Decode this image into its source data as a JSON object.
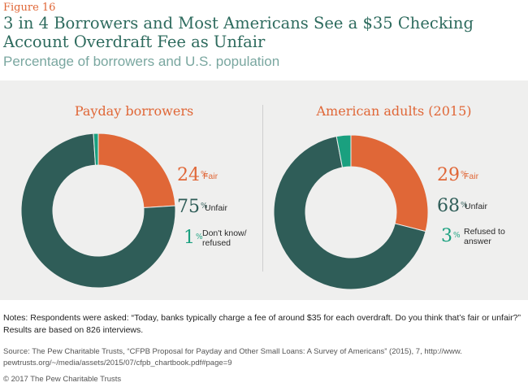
{
  "figure_label": "Figure 16",
  "title": "3 in 4 Borrowers and Most Americans See a $35 Checking Account Overdraft Fee as Unfair",
  "subtitle": "Percentage of borrowers and U.S. population",
  "colors": {
    "fair": "#e06737",
    "unfair": "#2f5d58",
    "other": "#1aa07f"
  },
  "chart_data": [
    {
      "type": "pie",
      "donut": true,
      "title": "Payday borrowers",
      "categories": [
        "Fair",
        "Unfair",
        "Don't know/ refused"
      ],
      "values": [
        24,
        75,
        1
      ],
      "unit": "%"
    },
    {
      "type": "pie",
      "donut": true,
      "title": "American adults (2015)",
      "categories": [
        "Fair",
        "Unfair",
        "Refused to answer"
      ],
      "values": [
        29,
        68,
        3
      ],
      "unit": "%"
    }
  ],
  "notes": {
    "line1": "Notes: Respondents were asked: “Today, banks typically charge a fee of around $35 for each overdraft. Do you think that’s fair or unfair?”",
    "line2": "Results are based on 826 interviews."
  },
  "source": {
    "line1": "Source: The Pew Charitable Trusts, “CFPB Proposal for Payday and Other Small Loans: A Survey of Americans” (2015), 7, http://www.",
    "line2": "pewtrusts.org/~/media/assets/2015/07/cfpb_chartbook.pdf#page=9"
  },
  "copyright": "© 2017 The Pew Charitable Trusts"
}
